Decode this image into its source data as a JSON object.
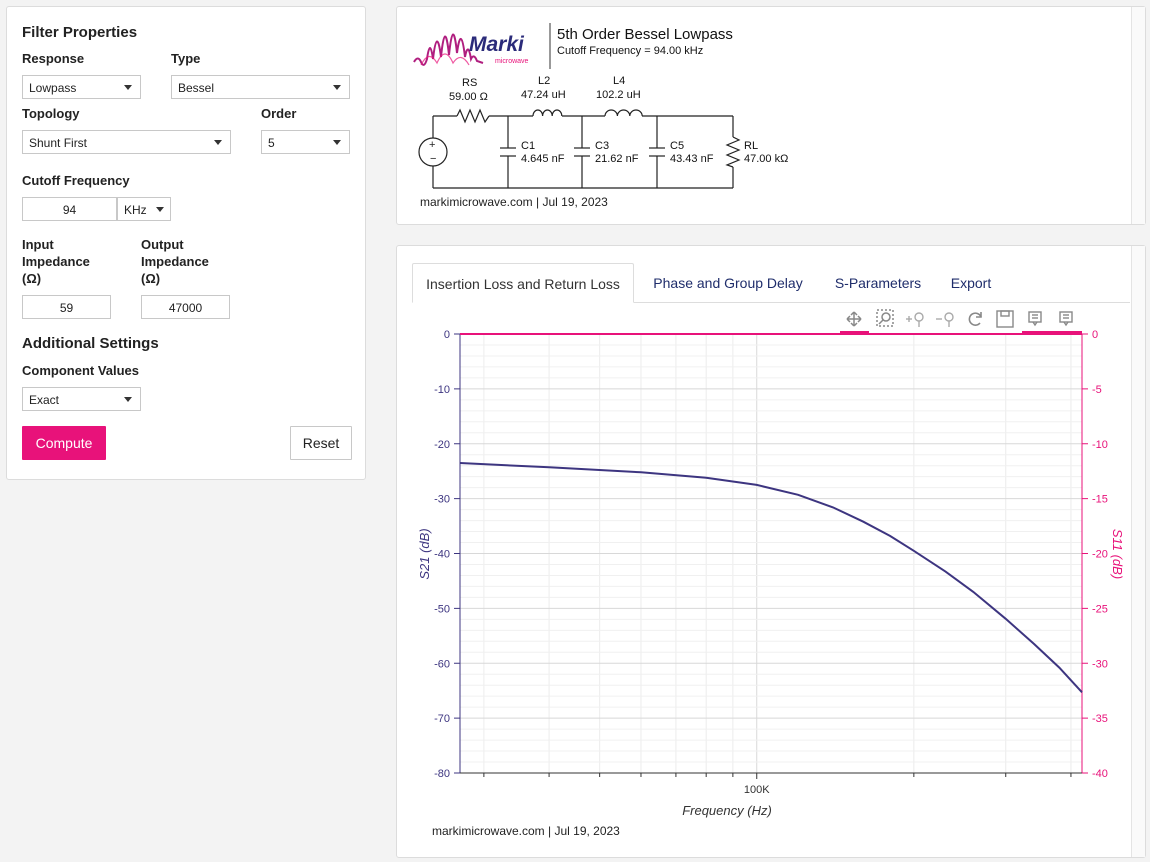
{
  "filter_properties": {
    "title": "Filter Properties",
    "response_label": "Response",
    "response_value": "Lowpass",
    "type_label": "Type",
    "type_value": "Bessel",
    "topology_label": "Topology",
    "topology_value": "Shunt First",
    "order_label": "Order",
    "order_value": "5",
    "cutoff_label": "Cutoff Frequency",
    "cutoff_value": "94",
    "cutoff_unit": "KHz",
    "input_impedance_label": "Input Impedance (Ω)",
    "input_impedance_lines": [
      "Input",
      "Impedance",
      "(Ω)"
    ],
    "input_impedance_value": "59",
    "output_impedance_label": "Output Impedance (Ω)",
    "output_impedance_lines": [
      "Output",
      "Impedance",
      "(Ω)"
    ],
    "output_impedance_value": "47000"
  },
  "additional_settings": {
    "title": "Additional Settings",
    "component_values_label": "Component Values",
    "component_values_value": "Exact"
  },
  "buttons": {
    "compute": "Compute",
    "reset": "Reset"
  },
  "schematic": {
    "logo_text": "Marki",
    "logo_subtext": "microwave",
    "title": "5th Order Bessel Lowpass",
    "subtitle": "Cutoff Frequency = 94.00 kHz",
    "footer": "markimicrowave.com | Jul 19, 2023",
    "components": {
      "rs": {
        "name": "RS",
        "value": "59.00 Ω"
      },
      "l2": {
        "name": "L2",
        "value": "47.24 uH"
      },
      "l4": {
        "name": "L4",
        "value": "102.2 uH"
      },
      "c1": {
        "name": "C1",
        "value": "4.645 nF"
      },
      "c3": {
        "name": "C3",
        "value": "21.62 nF"
      },
      "c5": {
        "name": "C5",
        "value": "43.43 nF"
      },
      "rl": {
        "name": "RL",
        "value": "47.00 kΩ"
      }
    }
  },
  "tabs": [
    "Insertion Loss and Return Loss",
    "Phase and Group Delay",
    "S-Parameters",
    "Export"
  ],
  "active_tab": "Insertion Loss and Return Loss",
  "chart_toolbar_icons": [
    "pan-icon",
    "box-zoom-icon",
    "zoom-in-icon",
    "zoom-out-icon",
    "reset-icon",
    "save-icon",
    "hover-s21-icon",
    "hover-s11-icon"
  ],
  "chart_footer": "markimicrowave.com  |  Jul 19, 2023",
  "colors": {
    "accent": "#e8127a",
    "s21": "#3d3580",
    "link": "#1f2d6b"
  },
  "chart_data": {
    "type": "line",
    "xlabel": "Frequency (Hz)",
    "ylabel": "S21 (dB)",
    "ylabel_right": "S11 (dB)",
    "x_scale": "log",
    "xlim": [
      27000,
      420000
    ],
    "ylim": [
      -80,
      0
    ],
    "ylim_right": [
      -40,
      0
    ],
    "yticks": [
      0,
      -10,
      -20,
      -30,
      -40,
      -50,
      -60,
      -70,
      -80
    ],
    "yticks_right": [
      0,
      -5,
      -10,
      -15,
      -20,
      -25,
      -30,
      -35,
      -40
    ],
    "xtick_labels": [
      {
        "value": 100000,
        "label": "100K"
      }
    ],
    "grid": true,
    "series": [
      {
        "axis": "left",
        "color": "#3d3580",
        "points": [
          [
            27000,
            -23.5
          ],
          [
            40000,
            -24.3
          ],
          [
            60000,
            -25.2
          ],
          [
            80000,
            -26.2
          ],
          [
            100000,
            -27.5
          ],
          [
            120000,
            -29.3
          ],
          [
            140000,
            -31.6
          ],
          [
            160000,
            -34.2
          ],
          [
            180000,
            -36.8
          ],
          [
            200000,
            -39.5
          ],
          [
            230000,
            -43.3
          ],
          [
            260000,
            -47.0
          ],
          [
            300000,
            -51.9
          ],
          [
            340000,
            -56.5
          ],
          [
            380000,
            -60.8
          ],
          [
            420000,
            -65.3
          ]
        ]
      },
      {
        "axis": "right",
        "color": "#e8127a",
        "points": [
          [
            27000,
            0
          ],
          [
            420000,
            0
          ]
        ]
      }
    ]
  }
}
